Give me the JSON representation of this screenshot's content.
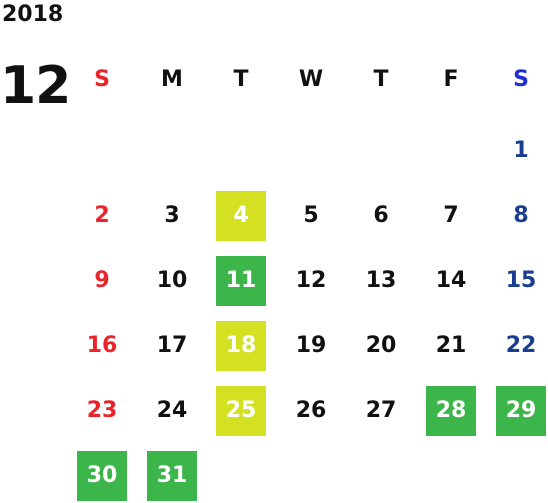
{
  "calendar": {
    "year": "2018",
    "month": "12",
    "weekdays": [
      "S",
      "M",
      "T",
      "W",
      "T",
      "F",
      "S"
    ],
    "weeks": [
      [
        "",
        "",
        "",
        "",
        "",
        "",
        "1"
      ],
      [
        "2",
        "3",
        "4",
        "5",
        "6",
        "7",
        "8"
      ],
      [
        "9",
        "10",
        "11",
        "12",
        "13",
        "14",
        "15"
      ],
      [
        "16",
        "17",
        "18",
        "19",
        "20",
        "21",
        "22"
      ],
      [
        "23",
        "24",
        "25",
        "26",
        "27",
        "28",
        "29"
      ],
      [
        "30",
        "31",
        "",
        "",
        "",
        "",
        ""
      ]
    ],
    "highlights": {
      "yellow": [
        "4",
        "18",
        "25"
      ],
      "green": [
        "11",
        "28",
        "29",
        "30",
        "31"
      ]
    },
    "colors": {
      "sunday": "#e8252a",
      "saturday": "#1a3d8f",
      "saturday_header": "#1f2fd6",
      "yellow_highlight": "#d4e022",
      "green_highlight": "#3cb54a"
    }
  }
}
